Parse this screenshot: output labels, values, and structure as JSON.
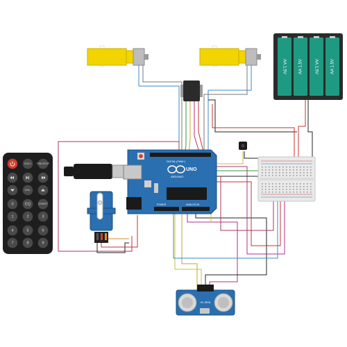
{
  "remote": {
    "buttons": [
      {
        "label": "",
        "kind": "power"
      },
      {
        "label": "VOL+"
      },
      {
        "label": "FUNC/STOP"
      },
      {
        "label": "",
        "kind": "prev"
      },
      {
        "label": "",
        "kind": "play"
      },
      {
        "label": "",
        "kind": "next"
      },
      {
        "label": "",
        "kind": "down"
      },
      {
        "label": "VOL-"
      },
      {
        "label": "",
        "kind": "up"
      },
      {
        "label": "0"
      },
      {
        "label": "EQ"
      },
      {
        "label": "ST/REPT"
      },
      {
        "label": "1"
      },
      {
        "label": "2"
      },
      {
        "label": "3"
      },
      {
        "label": "4"
      },
      {
        "label": "5"
      },
      {
        "label": "6"
      },
      {
        "label": "7"
      },
      {
        "label": "8"
      },
      {
        "label": "9"
      }
    ]
  },
  "battery": {
    "cells": [
      "AA 1.5V",
      "AA 1.5V",
      "AA 1.5V",
      "AA 1.5V"
    ]
  },
  "arduino": {
    "brand": "ARDUINO",
    "model": "UNO",
    "digital_header": "DIGITAL (PWM~)",
    "power_header": "POWER",
    "analog_header": "ANALOG IN"
  },
  "ultrasonic": {
    "label": "HC-SR04"
  },
  "colors": {
    "board": "#2a6fb0",
    "battery_case": "#2b2b2b",
    "battery_cell": "#1f9a82",
    "motor": "#f2d400",
    "remote": "#1e1e1e",
    "power_button": "#d63a2a"
  }
}
